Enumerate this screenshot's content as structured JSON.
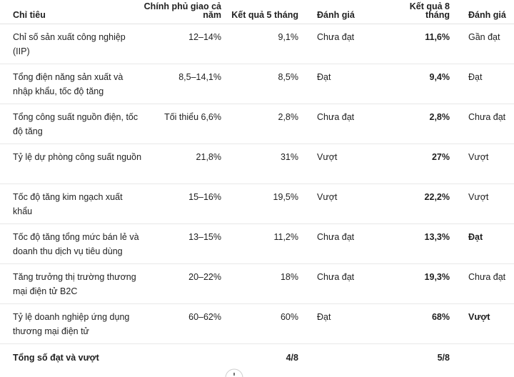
{
  "table": {
    "header": [
      "Chỉ tiêu",
      "Chính phủ giao cả năm",
      "Kết quả 5 tháng",
      "Đánh giá",
      "Kết quả 8 tháng",
      "Đánh giá"
    ],
    "rows": [
      {
        "cells": [
          "Chỉ số sản xuất công nghiệp (IIP)",
          "12–14%",
          "9,1%",
          "Chưa đạt",
          "11,6%",
          "Gần đạt"
        ],
        "bold_rating": false
      },
      {
        "cells": [
          "Tổng điện năng sản xuất và nhập khẩu, tốc độ tăng",
          "8,5–14,1%",
          "8,5%",
          "Đạt",
          "9,4%",
          "Đạt"
        ],
        "bold_rating": false
      },
      {
        "cells": [
          "Tổng công suất nguồn điện, tốc độ tăng",
          "Tối thiểu 6,6%",
          "2,8%",
          "Chưa đạt",
          "2,8%",
          "Chưa đạt"
        ],
        "bold_rating": false
      },
      {
        "cells": [
          "Tỷ lệ dự phòng công suất nguồn",
          "21,8%",
          "31%",
          "Vượt",
          "27%",
          "Vượt"
        ],
        "bold_rating": false
      },
      {
        "cells": [
          "Tốc độ tăng kim ngạch xuất khẩu",
          "15–16%",
          "19,5%",
          "Vượt",
          "22,2%",
          "Vượt"
        ],
        "bold_rating": false
      },
      {
        "cells": [
          "Tốc độ tăng tổng mức bán lẻ và doanh thu dịch vụ tiêu dùng",
          "13–15%",
          "11,2%",
          "Chưa đạt",
          "13,3%",
          "Đạt"
        ],
        "bold_rating": true
      },
      {
        "cells": [
          "Tăng trưởng thị trường thương mại điện tử B2C",
          "20–22%",
          "18%",
          "Chưa đạt",
          "19,3%",
          "Chưa đạt"
        ],
        "bold_rating": false
      },
      {
        "cells": [
          "Tỷ lệ doanh nghiệp ứng dụng thương mại điện tử",
          "60–62%",
          "60%",
          "Đạt",
          "68%",
          "Vượt"
        ],
        "bold_rating": true
      }
    ],
    "total": [
      "Tổng số đạt và vượt",
      "4/8",
      "5/8"
    ]
  }
}
